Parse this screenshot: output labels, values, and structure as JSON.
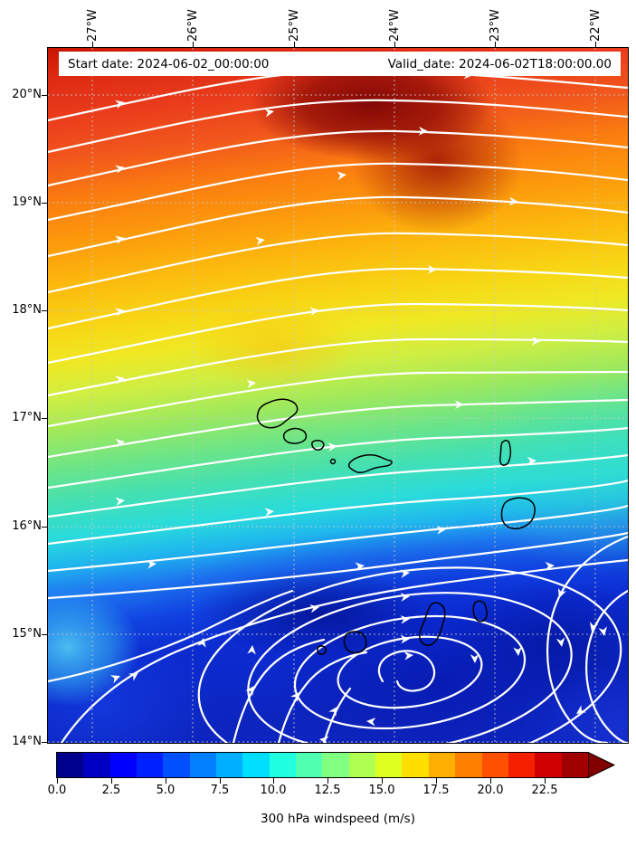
{
  "title_bar": {
    "start_date": "Start date: 2024-06-02_00:00:00",
    "valid_date": "Valid_date: 2024-06-02T18:00:00.00"
  },
  "axes": {
    "lon_ticks": [
      "27°W",
      "26°W",
      "25°W",
      "24°W",
      "23°W",
      "22°W"
    ],
    "lat_ticks": [
      "20°N",
      "19°N",
      "18°N",
      "17°N",
      "16°N",
      "15°N",
      "14°N"
    ]
  },
  "colorbar": {
    "label": "300 hPa windspeed (m/s)",
    "tick_labels": [
      "0.0",
      "2.5",
      "5.0",
      "7.5",
      "10.0",
      "12.5",
      "15.0",
      "17.5",
      "20.0",
      "22.5"
    ],
    "extend_color": "#800000",
    "segment_colors": [
      "#00008f",
      "#0000c4",
      "#0000ff",
      "#0020ff",
      "#0050ff",
      "#0080ff",
      "#00afff",
      "#00dfff",
      "#20ffdf",
      "#50ffaf",
      "#80ff80",
      "#afff50",
      "#dfff20",
      "#ffdf00",
      "#ffaf00",
      "#ff8000",
      "#ff5000",
      "#f42000",
      "#d00000",
      "#a00000"
    ]
  },
  "map": {
    "streamline_color": "#ffffff",
    "coastline_color": "#000000",
    "graticule_color": "#c8c8c8",
    "islands": [
      "Santo Antão",
      "São Vicente",
      "Santa Luzia",
      "São Nicolau",
      "Sal",
      "Boa Vista",
      "Maio",
      "Santiago",
      "Fogo",
      "Brava"
    ]
  },
  "chart_data": {
    "type": "heatmap",
    "subtype": "filled-contour windspeed map with streamlines",
    "title": "",
    "field": "300 hPa windspeed",
    "units": "m/s",
    "x_axis": {
      "label": "longitude",
      "tick_labels": [
        "27°W",
        "26°W",
        "25°W",
        "24°W",
        "23°W",
        "22°W"
      ],
      "range_deg_west": [
        27.45,
        21.68
      ]
    },
    "y_axis": {
      "label": "latitude",
      "tick_labels": [
        "20°N",
        "19°N",
        "18°N",
        "17°N",
        "16°N",
        "15°N",
        "14°N"
      ],
      "range_deg_north": [
        14.0,
        20.45
      ]
    },
    "colorbar": {
      "label": "300 hPa windspeed (m/s)",
      "ticks": [
        0.0,
        2.5,
        5.0,
        7.5,
        10.0,
        12.5,
        15.0,
        17.5,
        20.0,
        22.5
      ],
      "colormap": "jet",
      "range": [
        0,
        25
      ],
      "level_step": 1.25,
      "extend": "max"
    },
    "features": {
      "wind_maximum": {
        "approx_lon": "24.3°W",
        "approx_lat": "20.2°N",
        "approx_speed_ms": 25
      },
      "vortex_minimum": {
        "approx_lon": "23.8°W",
        "approx_lat": "14.2°N",
        "approx_speed_ms": 1,
        "note": "closed clockwise streamline loops over the southern Cape Verde islands"
      },
      "meridional_profile_at_24p5W": [
        {
          "lat": "20°N",
          "speed_ms": 24
        },
        {
          "lat": "19°N",
          "speed_ms": 21
        },
        {
          "lat": "18°N",
          "speed_ms": 17
        },
        {
          "lat": "17°N",
          "speed_ms": 14
        },
        {
          "lat": "16°N",
          "speed_ms": 11
        },
        {
          "lat": "15°N",
          "speed_ms": 5
        },
        {
          "lat": "14°N",
          "speed_ms": 3
        }
      ],
      "flow": "broad west-to-east jet across the north, weakening southward into a closed vortex near 14-15°N"
    },
    "overlays": [
      "white streamlines with arrowheads",
      "Cape Verde island coastlines",
      "dashed degree graticule"
    ],
    "grid": true,
    "legend_position": "horizontal colorbar below map"
  }
}
